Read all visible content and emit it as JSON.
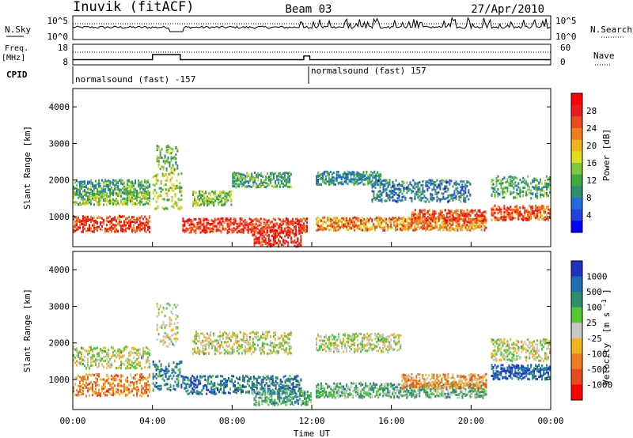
{
  "header": {
    "title": "Inuvik (fitACF)",
    "beam": "Beam 03",
    "date": "27/Apr/2010"
  },
  "chart_data": [
    {
      "type": "line",
      "panel": "noise",
      "left_label": "N.Sky",
      "right_label": "N.Search",
      "left_ticks": [
        "10^5",
        "10^0"
      ],
      "right_ticks": [
        "10^5",
        "10^0"
      ],
      "legend_style": "dotted"
    },
    {
      "type": "line",
      "panel": "frequency",
      "left_label_line1": "Freq.",
      "left_label_line2": "[MHz]",
      "left_ticks": [
        18,
        8
      ],
      "right_label": "Nave",
      "right_ticks": [
        60,
        0
      ],
      "legend_style": "dotted",
      "freq_steps": [
        {
          "t": 0.0,
          "f": 10.5
        },
        {
          "t": 4.0,
          "f": 10.5
        },
        {
          "t": 4.0,
          "f": 13.0
        },
        {
          "t": 5.4,
          "f": 13.0
        },
        {
          "t": 5.4,
          "f": 10.5
        },
        {
          "t": 11.6,
          "f": 10.5
        },
        {
          "t": 11.6,
          "f": 12.3
        },
        {
          "t": 11.9,
          "f": 12.3
        },
        {
          "t": 11.9,
          "f": 10.5
        },
        {
          "t": 24.0,
          "f": 10.5
        }
      ]
    },
    {
      "type": "table",
      "panel": "cpid",
      "label": "CPID",
      "segments": [
        {
          "start": 0,
          "end": 12,
          "text": "normalsound (fast) -157"
        },
        {
          "start": 12,
          "end": 24,
          "text": "normalsound (fast) 157"
        }
      ]
    },
    {
      "type": "heatmap",
      "panel": "power",
      "ylabel": "Slant Range [km]",
      "ylim": [
        180,
        4500
      ],
      "yticks": [
        1000,
        2000,
        3000,
        4000
      ],
      "xlim": [
        0,
        24
      ],
      "colorbar_label": "Power [dB]",
      "colorbar_ticks": [
        4,
        8,
        12,
        16,
        20,
        24,
        28
      ],
      "colorbar_colors": [
        "#0000ff",
        "#2244dd",
        "#1e6edc",
        "#2f8f6d",
        "#3caa3c",
        "#7ec83c",
        "#dede1e",
        "#f0b41e",
        "#f07d1e",
        "#ec4b1e",
        "#e81e1e",
        "#ff0000"
      ],
      "bands": [
        {
          "start": 0.0,
          "end": 3.9,
          "center": 800,
          "width": 220,
          "level": 0.82
        },
        {
          "start": 0.0,
          "end": 3.9,
          "center": 1500,
          "width": 180,
          "level": 0.45
        },
        {
          "start": 0.0,
          "end": 3.9,
          "center": 1800,
          "width": 200,
          "level": 0.35
        },
        {
          "start": 4.0,
          "end": 5.5,
          "center": 1700,
          "width": 500,
          "level": 0.5
        },
        {
          "start": 4.2,
          "end": 5.3,
          "center": 2600,
          "width": 350,
          "level": 0.4
        },
        {
          "start": 5.5,
          "end": 11.8,
          "center": 750,
          "width": 200,
          "level": 0.85
        },
        {
          "start": 6.0,
          "end": 8.0,
          "center": 1500,
          "width": 200,
          "level": 0.45
        },
        {
          "start": 8.0,
          "end": 11.0,
          "center": 2000,
          "width": 200,
          "level": 0.35
        },
        {
          "start": 9.0,
          "end": 11.5,
          "center": 400,
          "width": 250,
          "level": 0.9
        },
        {
          "start": 12.2,
          "end": 20.8,
          "center": 800,
          "width": 180,
          "level": 0.7
        },
        {
          "start": 12.2,
          "end": 15.5,
          "center": 2050,
          "width": 180,
          "level": 0.3
        },
        {
          "start": 15.0,
          "end": 20.0,
          "center": 1700,
          "width": 300,
          "level": 0.25
        },
        {
          "start": 17.0,
          "end": 20.8,
          "center": 1000,
          "width": 180,
          "level": 0.8
        },
        {
          "start": 21.0,
          "end": 24.0,
          "center": 1100,
          "width": 200,
          "level": 0.78
        },
        {
          "start": 21.0,
          "end": 24.0,
          "center": 1800,
          "width": 300,
          "level": 0.35
        }
      ]
    },
    {
      "type": "heatmap",
      "panel": "velocity",
      "ylabel": "Slant Range [km]",
      "ylim": [
        180,
        4500
      ],
      "yticks": [
        1000,
        2000,
        3000,
        4000
      ],
      "xlim": [
        0,
        24
      ],
      "xticks": [
        "00:00",
        "04:00",
        "08:00",
        "12:00",
        "16:00",
        "20:00",
        "00:00"
      ],
      "xlabel": "Time UT",
      "colorbar_label": "Velocity",
      "colorbar_unit_base": "[m s",
      "colorbar_unit_sup": "-1",
      "colorbar_unit_end": "]",
      "colorbar_ticks": [
        1000,
        500,
        100,
        25,
        -25,
        -100,
        -500,
        -1000
      ],
      "colorbar_colors": [
        "#1e32c8",
        "#1e6eb4",
        "#2f8f6d",
        "#50c832",
        "#c8c8c8",
        "#f0b41e",
        "#f07d1e",
        "#e84b1e",
        "#ff0000"
      ],
      "bands": [
        {
          "start": 0.0,
          "end": 3.9,
          "center": 850,
          "width": 300,
          "level": 0.72
        },
        {
          "start": 0.0,
          "end": 3.9,
          "center": 1600,
          "width": 300,
          "level": 0.5
        },
        {
          "start": 4.0,
          "end": 5.5,
          "center": 1100,
          "width": 400,
          "level": 0.22
        },
        {
          "start": 4.2,
          "end": 5.3,
          "center": 2500,
          "width": 600,
          "level": 0.5
        },
        {
          "start": 5.5,
          "end": 11.5,
          "center": 850,
          "width": 250,
          "level": 0.2
        },
        {
          "start": 6.0,
          "end": 11.0,
          "center": 2000,
          "width": 300,
          "level": 0.5
        },
        {
          "start": 9.0,
          "end": 12.0,
          "center": 500,
          "width": 200,
          "level": 0.35
        },
        {
          "start": 12.2,
          "end": 16.5,
          "center": 2000,
          "width": 250,
          "level": 0.5
        },
        {
          "start": 12.2,
          "end": 20.8,
          "center": 700,
          "width": 200,
          "level": 0.38
        },
        {
          "start": 16.5,
          "end": 20.8,
          "center": 950,
          "width": 200,
          "level": 0.68
        },
        {
          "start": 21.0,
          "end": 24.0,
          "center": 1200,
          "width": 200,
          "level": 0.15
        },
        {
          "start": 21.0,
          "end": 24.0,
          "center": 1800,
          "width": 300,
          "level": 0.5
        }
      ]
    }
  ]
}
